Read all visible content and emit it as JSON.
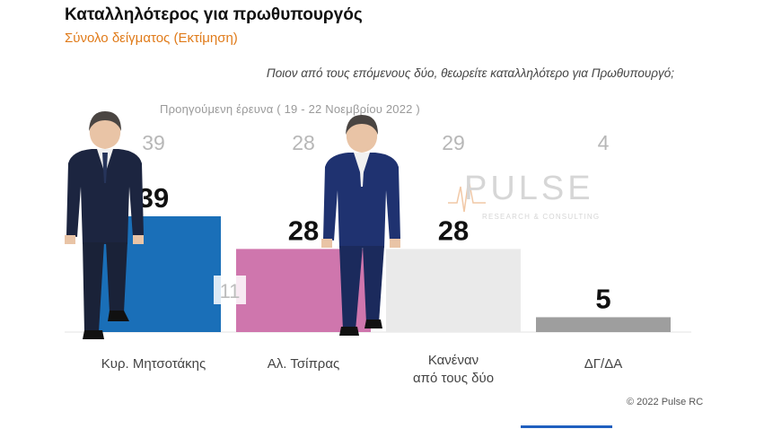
{
  "title": "Καταλληλότερος για πρωθυπουργός",
  "subtitle": "Σύνολο δείγματος   (Εκτίμηση)",
  "question": "Ποιον από τους επόμενους δύο, θεωρείτε καταλληλότερο για Πρωθυπουργό;",
  "previous_survey_label": "Προηγούμενη έρευνα   ( 19 - 22 Νοεμβρίου  2022 )",
  "copyright": "© 2022 Pulse RC",
  "logo": {
    "name": "PULSE",
    "tagline": "RESEARCH & CONSULTING"
  },
  "chart_data": {
    "type": "bar",
    "categories": [
      "Κυρ. Μητσοτάκης",
      "Αλ. Τσίπρας",
      "Κανέναν από τους δύο",
      "ΔΓ/ΔΑ"
    ],
    "category_lines": [
      [
        "Κυρ. Μητσοτάκης"
      ],
      [
        "Αλ. Τσίπρας"
      ],
      [
        "Κανέναν",
        "από τους δύο"
      ],
      [
        "ΔΓ/ΔΑ"
      ]
    ],
    "values": [
      39,
      28,
      28,
      5
    ],
    "previous_values": [
      "39",
      "28",
      "29",
      "4"
    ],
    "annotation": "11",
    "colors": [
      "#1a6fb8",
      "#cf76ad",
      "#eaeaea",
      "#9e9e9e"
    ],
    "ylim": [
      0,
      45
    ]
  }
}
